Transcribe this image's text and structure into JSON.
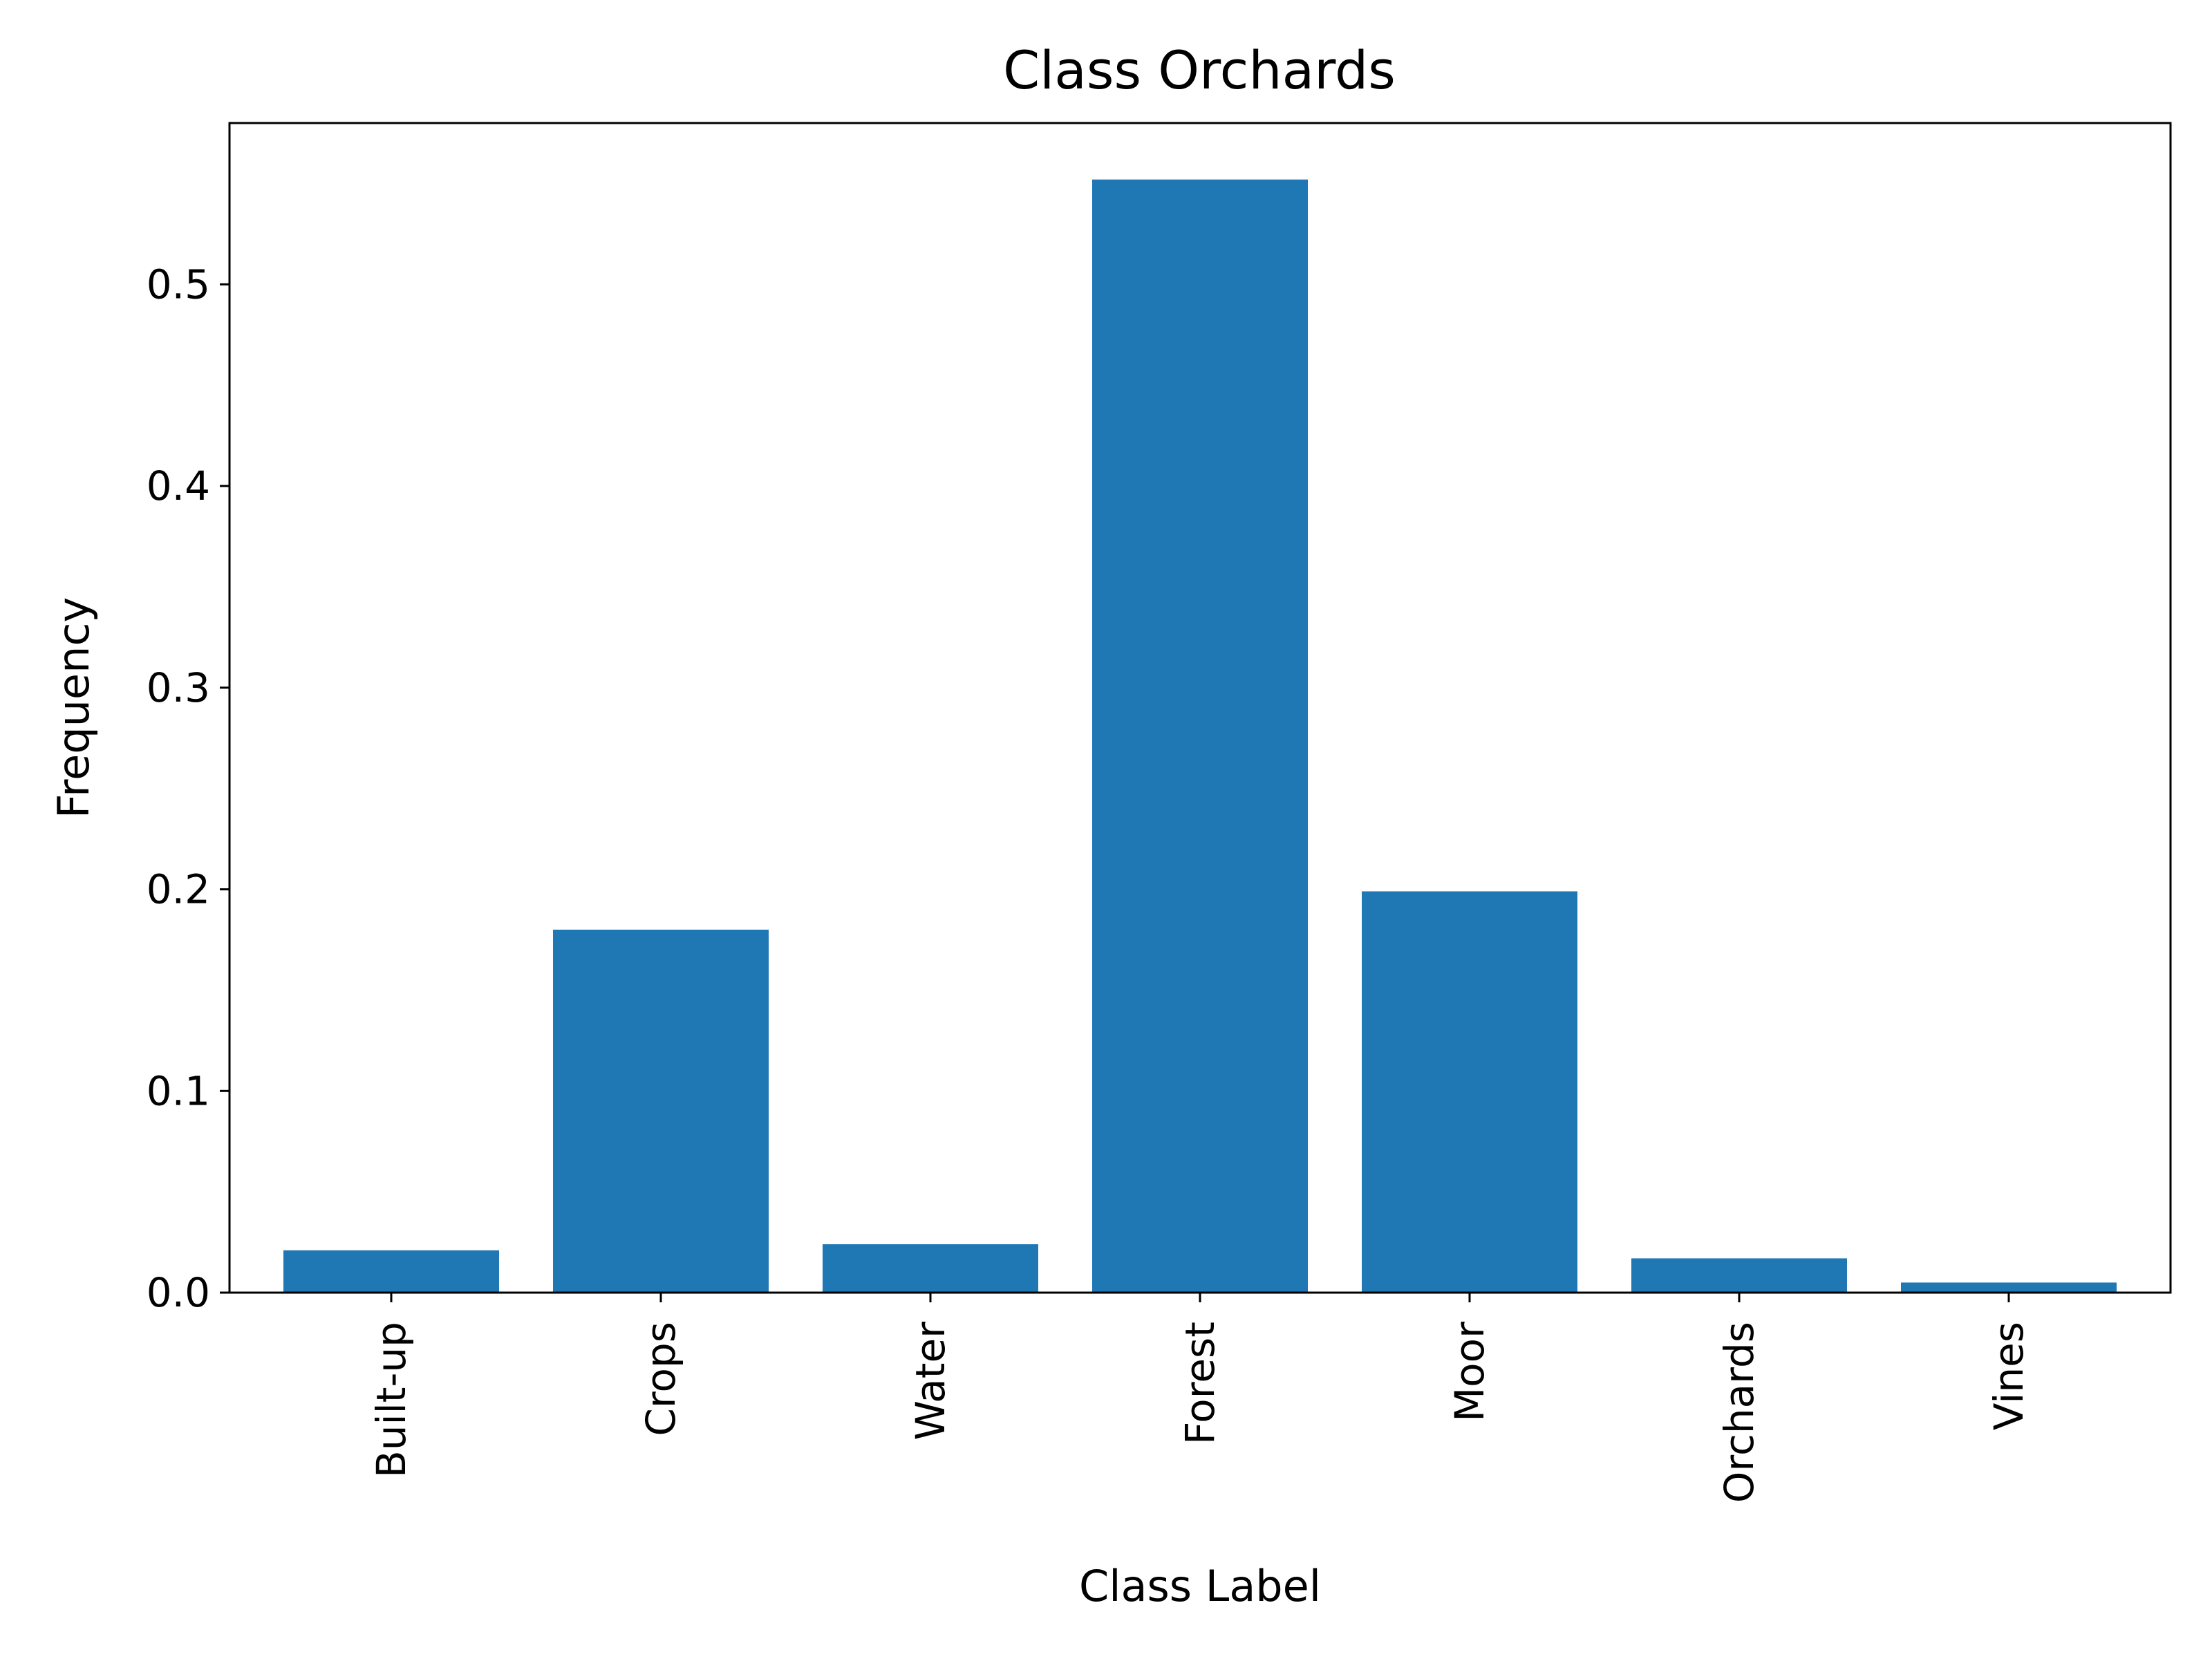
{
  "chart_data": {
    "type": "bar",
    "title": "Class Orchards",
    "xlabel": "Class Label",
    "ylabel": "Frequency",
    "categories": [
      "Built-up",
      "Crops",
      "Water",
      "Forest",
      "Moor",
      "Orchards",
      "Vines"
    ],
    "values": [
      0.021,
      0.18,
      0.024,
      0.552,
      0.199,
      0.017,
      0.005
    ],
    "ylim": [
      0,
      0.58
    ],
    "yticks": [
      0.0,
      0.1,
      0.2,
      0.3,
      0.4,
      0.5
    ],
    "ytick_labels": [
      "0.0",
      "0.1",
      "0.2",
      "0.3",
      "0.4",
      "0.5"
    ],
    "grid": false,
    "bar_color": "#1f77b4"
  }
}
